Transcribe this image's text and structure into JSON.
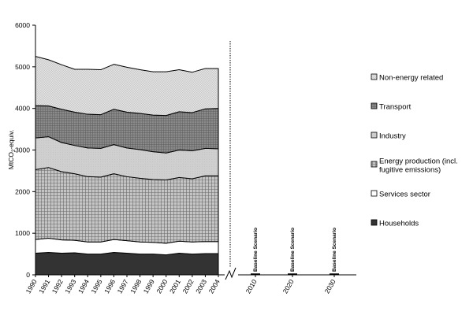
{
  "chart_data": {
    "type": "area",
    "ylabel": "MtCO2-equiv.",
    "ylabel_main": "MtCO",
    "ylabel_sub": "2",
    "ylabel_rest": "-equiv.",
    "ylim": [
      0,
      6000
    ],
    "yticks": [
      "0",
      "1000",
      "2000",
      "3000",
      "4000",
      "5000",
      "6000"
    ],
    "x": [
      "1990",
      "1991",
      "1992",
      "1993",
      "1994",
      "1995",
      "1996",
      "1997",
      "1998",
      "1999",
      "2000",
      "2001",
      "2002",
      "2003",
      "2004"
    ],
    "future_x": [
      "2010",
      "2020",
      "2030"
    ],
    "scenario_label": "Baseline Scenario",
    "series": [
      {
        "name": "Households",
        "color": "#333333",
        "values": [
          520,
          540,
          520,
          530,
          500,
          500,
          540,
          520,
          500,
          500,
          480,
          520,
          500,
          510,
          510
        ]
      },
      {
        "name": "Services sector",
        "color": "#ffffff",
        "values": [
          330,
          340,
          320,
          300,
          290,
          290,
          310,
          300,
          290,
          280,
          280,
          290,
          290,
          290,
          290
        ]
      },
      {
        "name": "Energy production (incl. fugitive emissions)",
        "color": "#bbbbbb",
        "values": [
          1680,
          1700,
          1640,
          1600,
          1570,
          1560,
          1580,
          1540,
          1530,
          1510,
          1520,
          1530,
          1520,
          1580,
          1580
        ]
      },
      {
        "name": "Industry",
        "color": "#cccccc",
        "values": [
          760,
          740,
          700,
          680,
          690,
          690,
          700,
          690,
          690,
          670,
          650,
          660,
          670,
          660,
          650
        ]
      },
      {
        "name": "Transport",
        "color": "#777777",
        "values": [
          780,
          740,
          800,
          800,
          810,
          810,
          850,
          860,
          870,
          880,
          900,
          920,
          920,
          950,
          970
        ]
      },
      {
        "name": "Non-energy related",
        "color": "#dddddd",
        "values": [
          1180,
          1110,
          1070,
          1030,
          1080,
          1080,
          1080,
          1080,
          1050,
          1040,
          1050,
          1010,
          970,
          970,
          960
        ]
      }
    ],
    "legend": [
      "Non-energy related",
      "Transport",
      "Industry",
      "Energy production (incl. fugitive emissions)",
      "Services sector",
      "Households"
    ],
    "legend_lines": [
      [
        "Non-energy related"
      ],
      [
        "Transport"
      ],
      [
        "Industry"
      ],
      [
        "Energy production (incl.",
        "fugitive emissions)"
      ],
      [
        "Services sector"
      ],
      [
        "Households"
      ]
    ]
  }
}
